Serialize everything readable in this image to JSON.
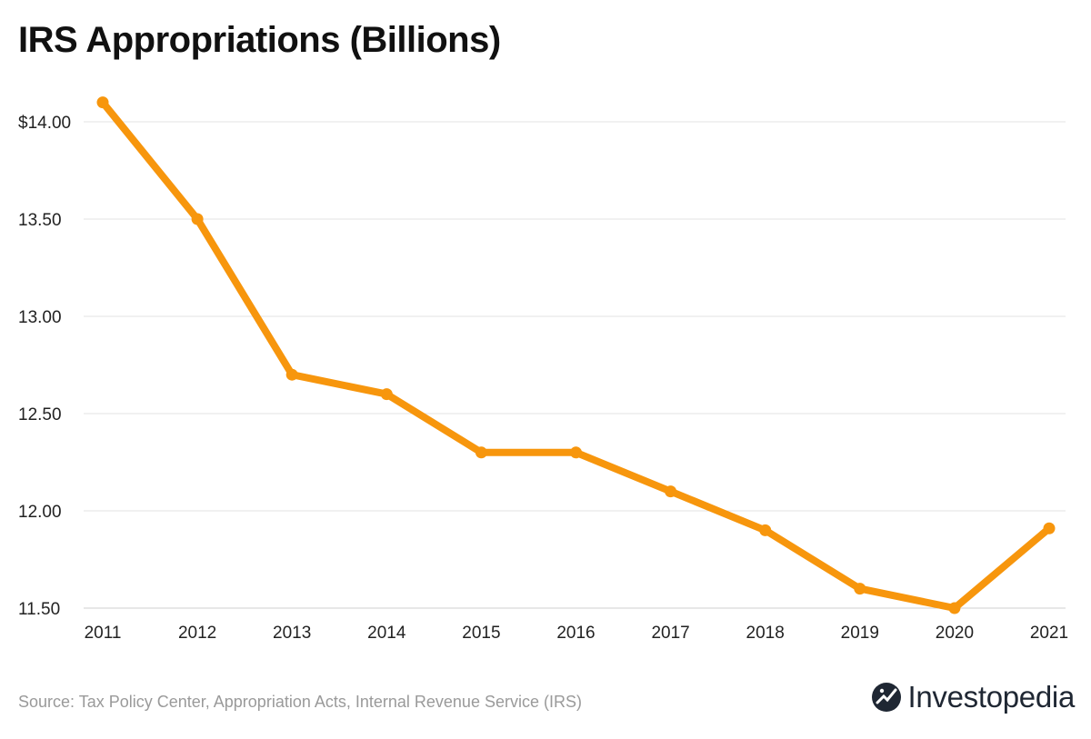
{
  "title": "IRS Appropriations (Billions)",
  "source": "Source: Tax Policy Center, Appropriation Acts, Internal Revenue Service (IRS)",
  "brand": "Investopedia",
  "colors": {
    "line": "#f7960d",
    "grid": "#e3e3e3",
    "text": "#111111",
    "source": "#9a9a9a"
  },
  "chart_data": {
    "type": "line",
    "title": "IRS Appropriations (Billions)",
    "xlabel": "",
    "ylabel": "",
    "x": [
      "2011",
      "2012",
      "2013",
      "2014",
      "2015",
      "2016",
      "2017",
      "2018",
      "2019",
      "2020",
      "2021"
    ],
    "series": [
      {
        "name": "IRS Appropriations",
        "values": [
          14.1,
          13.5,
          12.7,
          12.6,
          12.3,
          12.3,
          12.1,
          11.9,
          11.6,
          11.5,
          11.91
        ]
      }
    ],
    "yticks": [
      11.5,
      12.0,
      12.5,
      13.0,
      13.5,
      14.0
    ],
    "ytick_labels": [
      "11.50",
      "12.00",
      "12.50",
      "13.00",
      "13.50",
      "$14.00"
    ],
    "ylim": [
      11.5,
      14.1
    ],
    "grid": true
  }
}
